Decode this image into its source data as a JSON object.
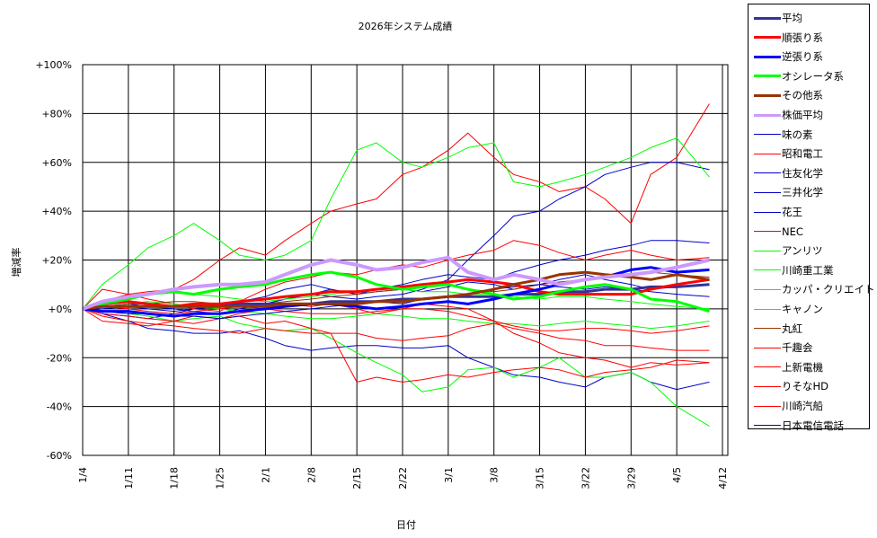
{
  "chart_data": {
    "type": "line",
    "title": "2026年システム成績",
    "xlabel": "日付",
    "ylabel": "増減率",
    "ylim": [
      -60,
      100
    ],
    "y_ticks": [
      "+100%",
      "+80%",
      "+60%",
      "+40%",
      "+20%",
      "+0%",
      "-20%",
      "-40%",
      "-60%"
    ],
    "y_tick_values": [
      100,
      80,
      60,
      40,
      20,
      0,
      -20,
      -40,
      -60
    ],
    "negative_tick_color": "#ff0000",
    "x_ticks": [
      "1/4",
      "1/11",
      "1/18",
      "1/25",
      "2/1",
      "2/8",
      "2/15",
      "2/22",
      "3/1",
      "3/8",
      "3/15",
      "3/22",
      "3/29",
      "4/5",
      "4/12"
    ],
    "x_range_days": [
      0,
      98
    ],
    "grid": true,
    "legend_position": "right",
    "x_days": [
      0,
      3,
      7,
      10,
      14,
      17,
      21,
      24,
      28,
      31,
      35,
      38,
      42,
      45,
      49,
      52,
      56,
      59,
      63,
      66,
      70,
      73,
      77,
      80,
      84,
      87,
      91,
      96
    ],
    "series": [
      {
        "name": "平均",
        "color": "#333399",
        "width": 3,
        "values": [
          0,
          1,
          1,
          1,
          1,
          1,
          1,
          2,
          2,
          2,
          2,
          3,
          3,
          3,
          4,
          4,
          5,
          5,
          5,
          6,
          6,
          7,
          7,
          8,
          8,
          9,
          9,
          10
        ]
      },
      {
        "name": "順張り系",
        "color": "#ff0000",
        "width": 3,
        "values": [
          0,
          2,
          3,
          2,
          1,
          2,
          2,
          3,
          4,
          5,
          6,
          7,
          7,
          8,
          9,
          10,
          11,
          12,
          11,
          10,
          7,
          6,
          6,
          6,
          6,
          8,
          10,
          12
        ]
      },
      {
        "name": "逆張り系",
        "color": "#0000ff",
        "width": 3,
        "values": [
          0,
          -1,
          -1,
          -2,
          -3,
          -2,
          -2,
          -1,
          0,
          1,
          2,
          2,
          1,
          0,
          1,
          2,
          3,
          2,
          4,
          6,
          8,
          10,
          12,
          13,
          16,
          17,
          15,
          16
        ]
      },
      {
        "name": "オシレータ系",
        "color": "#00ff00",
        "width": 3,
        "values": [
          0,
          2,
          4,
          6,
          7,
          6,
          8,
          9,
          10,
          12,
          14,
          15,
          13,
          10,
          8,
          9,
          10,
          8,
          6,
          4,
          5,
          7,
          9,
          10,
          8,
          4,
          3,
          -1
        ]
      },
      {
        "name": "その他系",
        "color": "#993300",
        "width": 3,
        "values": [
          0,
          1,
          1,
          1,
          1,
          1,
          1,
          1,
          1,
          2,
          2,
          2,
          2,
          3,
          3,
          4,
          5,
          6,
          8,
          10,
          12,
          14,
          15,
          14,
          13,
          12,
          14,
          12
        ]
      },
      {
        "name": "株価平均",
        "color": "#cc99ff",
        "width": 4,
        "values": [
          0,
          3,
          5,
          6,
          8,
          9,
          10,
          10,
          11,
          14,
          18,
          20,
          18,
          16,
          17,
          19,
          21,
          15,
          12,
          14,
          12,
          10,
          12,
          13,
          14,
          15,
          17,
          20
        ]
      },
      {
        "name": "味の素",
        "color": "#0000cc",
        "width": 1,
        "values": [
          0,
          -2,
          -3,
          -4,
          -2,
          0,
          2,
          3,
          5,
          8,
          10,
          8,
          6,
          7,
          8,
          7,
          9,
          11,
          10,
          8,
          10,
          9,
          8,
          9,
          8,
          7,
          6,
          5
        ]
      },
      {
        "name": "昭和電工",
        "color": "#ff0000",
        "width": 1,
        "values": [
          0,
          3,
          6,
          7,
          8,
          12,
          20,
          25,
          22,
          28,
          35,
          40,
          43,
          45,
          55,
          58,
          65,
          72,
          62,
          55,
          52,
          48,
          50,
          45,
          35,
          55,
          62,
          84
        ]
      },
      {
        "name": "住友化学",
        "color": "#0000cc",
        "width": 1,
        "values": [
          0,
          1,
          2,
          1,
          0,
          -1,
          -2,
          0,
          2,
          4,
          6,
          5,
          4,
          5,
          6,
          8,
          12,
          20,
          30,
          38,
          40,
          45,
          50,
          55,
          58,
          60,
          60,
          57
        ]
      },
      {
        "name": "三井化学",
        "color": "#0000cc",
        "width": 1,
        "values": [
          0,
          -2,
          -5,
          -8,
          -9,
          -10,
          -10,
          -9,
          -12,
          -15,
          -17,
          -16,
          -15,
          -15,
          -16,
          -16,
          -15,
          -20,
          -24,
          -27,
          -28,
          -30,
          -32,
          -28,
          -26,
          -30,
          -33,
          -30
        ]
      },
      {
        "name": "花王",
        "color": "#0000cc",
        "width": 1,
        "values": [
          0,
          0,
          1,
          0,
          -1,
          0,
          1,
          2,
          2,
          4,
          6,
          8,
          6,
          8,
          10,
          12,
          14,
          13,
          12,
          15,
          18,
          20,
          22,
          24,
          26,
          28,
          28,
          27
        ]
      },
      {
        "name": "NEC",
        "color": "#ff0000",
        "width": 1,
        "values": [
          0,
          8,
          6,
          4,
          2,
          0,
          -1,
          3,
          8,
          11,
          13,
          15,
          14,
          16,
          18,
          17,
          20,
          22,
          24,
          28,
          26,
          23,
          20,
          22,
          24,
          22,
          20,
          21
        ]
      },
      {
        "name": "アンリツ",
        "color": "#00ff00",
        "width": 1,
        "values": [
          0,
          10,
          18,
          25,
          30,
          35,
          28,
          22,
          20,
          22,
          28,
          45,
          65,
          68,
          60,
          58,
          62,
          66,
          68,
          52,
          50,
          52,
          55,
          58,
          62,
          66,
          70,
          54
        ]
      },
      {
        "name": "川崎重工業",
        "color": "#00ff00",
        "width": 1,
        "values": [
          0,
          1,
          2,
          3,
          2,
          1,
          0,
          -1,
          -2,
          -3,
          -4,
          -4,
          -3,
          -2,
          -3,
          -4,
          -4,
          -5,
          -6,
          -6,
          -7,
          -6,
          -5,
          -6,
          -7,
          -8,
          -7,
          -5
        ]
      },
      {
        "name": "カッパ・クリエイト",
        "color": "#00ff00",
        "width": 1,
        "values": [
          0,
          3,
          5,
          6,
          7,
          6,
          5,
          4,
          3,
          4,
          5,
          6,
          7,
          8,
          8,
          7,
          7,
          6,
          6,
          5,
          4,
          5,
          5,
          4,
          3,
          2,
          1,
          0
        ]
      },
      {
        "name": "キャノン",
        "color": "#00ff00",
        "width": 1,
        "values": [
          0,
          -1,
          -2,
          -3,
          -5,
          -4,
          -3,
          -6,
          -8,
          -9,
          -8,
          -12,
          -18,
          -22,
          -27,
          -34,
          -32,
          -25,
          -24,
          -28,
          -24,
          -20,
          -28,
          -28,
          -26,
          -30,
          -40,
          -48
        ]
      },
      {
        "name": "丸紅",
        "color": "#993300",
        "width": 1,
        "values": [
          0,
          1,
          2,
          2,
          3,
          3,
          2,
          1,
          2,
          3,
          4,
          5,
          6,
          7,
          8,
          9,
          10,
          8,
          7,
          8,
          10,
          11,
          12,
          13,
          14,
          15,
          14,
          13
        ]
      },
      {
        "name": "千趣会",
        "color": "#ff0000",
        "width": 1,
        "values": [
          0,
          -3,
          -5,
          -6,
          -7,
          -8,
          -9,
          -10,
          -8,
          -9,
          -10,
          -10,
          -10,
          -12,
          -13,
          -12,
          -11,
          -8,
          -6,
          -8,
          -10,
          -12,
          -13,
          -15,
          -15,
          -16,
          -17,
          -17
        ]
      },
      {
        "name": "上新電機",
        "color": "#ff0000",
        "width": 1,
        "values": [
          0,
          1,
          0,
          -1,
          -2,
          -1,
          0,
          1,
          0,
          -1,
          -2,
          -2,
          -2,
          -1,
          0,
          0,
          -1,
          -3,
          -5,
          -7,
          -9,
          -9,
          -8,
          -8,
          -9,
          -10,
          -9,
          -7
        ]
      },
      {
        "name": "りそなHD",
        "color": "#ff0000",
        "width": 1,
        "values": [
          0,
          -5,
          -6,
          -7,
          -5,
          -3,
          -4,
          -2,
          0,
          2,
          1,
          2,
          0,
          -2,
          0,
          2,
          1,
          0,
          -5,
          -10,
          -14,
          -18,
          -20,
          -21,
          -24,
          -22,
          -23,
          -22
        ]
      },
      {
        "name": "川崎汽船",
        "color": "#ff0000",
        "width": 1,
        "values": [
          0,
          -2,
          -3,
          -4,
          -5,
          -6,
          -4,
          -3,
          -6,
          -5,
          -8,
          -10,
          -30,
          -28,
          -30,
          -29,
          -27,
          -28,
          -26,
          -25,
          -24,
          -25,
          -28,
          -26,
          -25,
          -24,
          -21,
          -22
        ]
      },
      {
        "name": "日本電信電話",
        "color": "#0000cc",
        "width": 1,
        "values": [
          0,
          -1,
          -2,
          -2,
          -3,
          -3,
          -4,
          -3,
          -2,
          -1,
          0,
          1,
          2,
          3,
          2,
          4,
          5,
          6,
          8,
          9,
          10,
          12,
          14,
          12,
          10,
          8,
          9,
          10
        ]
      }
    ]
  }
}
